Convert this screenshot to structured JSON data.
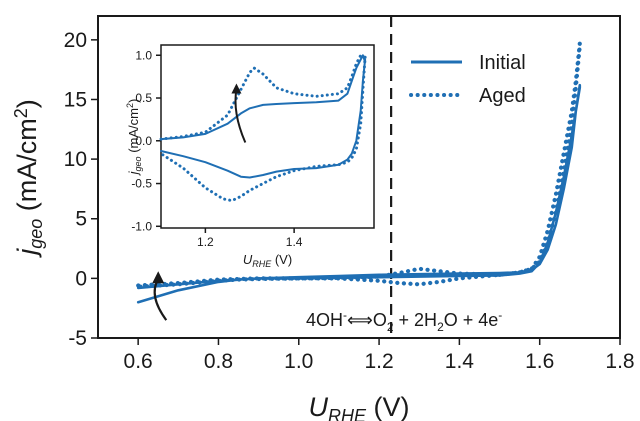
{
  "colors": {
    "series": "#1f6fb4",
    "axis": "#1a1a1a",
    "dashed_line": "#1a1a1a"
  },
  "legend": {
    "items": [
      {
        "label": "Initial",
        "style": "solid"
      },
      {
        "label": "Aged",
        "style": "dotted"
      }
    ],
    "placement": "top-right"
  },
  "reaction": {
    "left": "4OH",
    "left_sup": "-",
    "arrow": "⟺",
    "part1": "O",
    "part1_sub": "2",
    "part2": " + 2H",
    "part2_sub": "2",
    "part3": "O + 4e",
    "part3_sup": "-"
  },
  "chart_data": [
    {
      "id": "main",
      "type": "line",
      "xlabel": {
        "main": "U",
        "sub": "RHE",
        "unit": " (V)"
      },
      "ylabel": {
        "main": "j",
        "sub": "geo",
        "unit": " (mA/cm",
        "unit_sup": "2",
        "unit_end": ")"
      },
      "xlim": [
        0.5,
        1.8
      ],
      "ylim": [
        -5,
        22
      ],
      "xticks": [
        0.6,
        0.8,
        1.0,
        1.2,
        1.4,
        1.6,
        1.8
      ],
      "xtick_labels": [
        "0.6",
        "0.8",
        "1.0",
        "1.2",
        "1.4",
        "1.6",
        "1.8"
      ],
      "yticks": [
        -5,
        0,
        5,
        10,
        15,
        20
      ],
      "ytick_labels": [
        "-5",
        "0",
        "5",
        "10",
        "15",
        "20"
      ],
      "vline": 1.23,
      "arrow": {
        "from": [
          0.67,
          -3.5
        ],
        "to": [
          0.65,
          0.6
        ]
      },
      "series": [
        {
          "name": "Initial",
          "style": "solid",
          "x": [
            0.6,
            0.7,
            0.8,
            0.9,
            1.0,
            1.1,
            1.2,
            1.3,
            1.4,
            1.5,
            1.55,
            1.58,
            1.6,
            1.62,
            1.64,
            1.66,
            1.68,
            1.69,
            1.7,
            1.7,
            1.69,
            1.68,
            1.66,
            1.64,
            1.62,
            1.6,
            1.58,
            1.55,
            1.5,
            1.4,
            1.3,
            1.2,
            1.1,
            1.0,
            0.9,
            0.85,
            0.8,
            0.7,
            0.6
          ],
          "y": [
            -0.8,
            -0.5,
            -0.2,
            0.0,
            0.0,
            0.05,
            0.1,
            0.15,
            0.2,
            0.25,
            0.4,
            0.6,
            1.3,
            3.0,
            5.5,
            8.5,
            12.0,
            14.0,
            16.2,
            16.0,
            14.0,
            11.0,
            7.5,
            4.5,
            2.4,
            1.2,
            0.7,
            0.5,
            0.45,
            0.4,
            0.35,
            0.3,
            0.2,
            0.1,
            0.0,
            -0.1,
            -0.3,
            -1.0,
            -2.0
          ]
        },
        {
          "name": "Aged",
          "style": "dotted",
          "x": [
            0.6,
            0.7,
            0.8,
            0.9,
            1.0,
            1.1,
            1.2,
            1.25,
            1.3,
            1.35,
            1.4,
            1.5,
            1.55,
            1.58,
            1.6,
            1.62,
            1.64,
            1.66,
            1.68,
            1.69,
            1.7,
            1.7,
            1.69,
            1.68,
            1.66,
            1.64,
            1.62,
            1.6,
            1.58,
            1.55,
            1.5,
            1.4,
            1.35,
            1.3,
            1.25,
            1.2,
            1.1,
            1.0,
            0.9,
            0.85,
            0.8,
            0.7,
            0.6
          ],
          "y": [
            -0.6,
            -0.4,
            -0.1,
            0.0,
            0.0,
            0.05,
            0.15,
            0.45,
            0.8,
            0.6,
            0.4,
            0.3,
            0.5,
            0.8,
            1.8,
            4.0,
            7.0,
            10.5,
            14.0,
            16.5,
            19.7,
            19.5,
            16.0,
            13.0,
            9.0,
            5.5,
            3.0,
            1.4,
            0.8,
            0.5,
            0.3,
            0.0,
            -0.3,
            -0.5,
            -0.4,
            -0.2,
            0.0,
            0.0,
            -0.05,
            -0.1,
            -0.2,
            -0.5,
            -0.7
          ]
        }
      ]
    },
    {
      "id": "inset",
      "type": "line",
      "xlabel": {
        "main": "U",
        "sub": "RHE",
        "unit": " (V)"
      },
      "ylabel": {
        "main": "j",
        "sub": "geo",
        "unit": " (mA/cm",
        "unit_sup": "2",
        "unit_end": ")"
      },
      "xlim": [
        1.1,
        1.58
      ],
      "ylim": [
        -1.02,
        1.12
      ],
      "xticks": [
        1.2,
        1.4
      ],
      "xtick_labels": [
        "1.2",
        "1.4"
      ],
      "yticks": [
        -1.0,
        -0.5,
        0.0,
        0.5,
        1.0
      ],
      "ytick_labels": [
        "-1.0",
        "-0.5",
        "0.0",
        "0.5",
        "1.0"
      ],
      "arrow": {
        "from": [
          1.29,
          -0.02
        ],
        "to": [
          1.27,
          0.67
        ]
      },
      "series": [
        {
          "name": "Initial",
          "style": "solid",
          "x": [
            1.1,
            1.15,
            1.2,
            1.25,
            1.28,
            1.3,
            1.33,
            1.36,
            1.4,
            1.45,
            1.5,
            1.52,
            1.53,
            1.54,
            1.55,
            1.555,
            1.56,
            1.56,
            1.555,
            1.55,
            1.54,
            1.53,
            1.52,
            1.5,
            1.45,
            1.4,
            1.36,
            1.33,
            1.3,
            1.28,
            1.25,
            1.2,
            1.15,
            1.1
          ],
          "y": [
            0.02,
            0.04,
            0.08,
            0.2,
            0.32,
            0.38,
            0.42,
            0.43,
            0.44,
            0.45,
            0.47,
            0.55,
            0.7,
            0.85,
            0.95,
            1.0,
            0.92,
            0.95,
            0.7,
            0.35,
            0.0,
            -0.15,
            -0.22,
            -0.28,
            -0.32,
            -0.33,
            -0.36,
            -0.4,
            -0.43,
            -0.42,
            -0.35,
            -0.25,
            -0.18,
            -0.12
          ]
        },
        {
          "name": "Aged",
          "style": "dotted",
          "x": [
            1.1,
            1.15,
            1.2,
            1.25,
            1.28,
            1.3,
            1.31,
            1.33,
            1.36,
            1.4,
            1.45,
            1.5,
            1.52,
            1.53,
            1.54,
            1.55,
            1.555,
            1.56,
            1.56,
            1.555,
            1.55,
            1.54,
            1.53,
            1.52,
            1.5,
            1.45,
            1.4,
            1.36,
            1.33,
            1.3,
            1.28,
            1.26,
            1.24,
            1.2,
            1.15,
            1.1
          ],
          "y": [
            0.02,
            0.05,
            0.1,
            0.3,
            0.6,
            0.8,
            0.85,
            0.78,
            0.62,
            0.55,
            0.52,
            0.55,
            0.62,
            0.75,
            0.9,
            1.0,
            1.0,
            0.95,
            0.98,
            0.6,
            0.2,
            -0.1,
            -0.2,
            -0.25,
            -0.28,
            -0.3,
            -0.35,
            -0.42,
            -0.5,
            -0.58,
            -0.65,
            -0.7,
            -0.68,
            -0.55,
            -0.32,
            -0.15
          ]
        }
      ]
    }
  ]
}
